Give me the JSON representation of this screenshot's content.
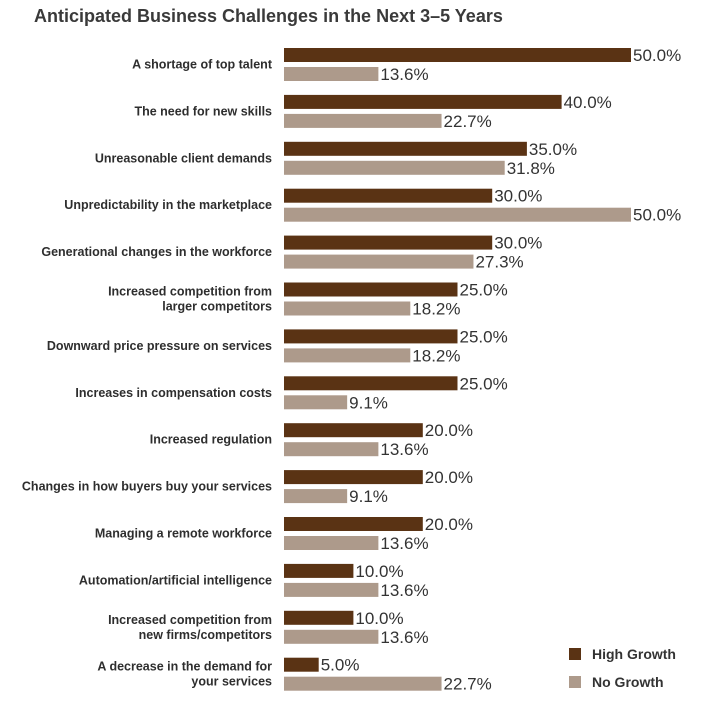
{
  "chart_data": {
    "type": "bar",
    "orientation": "horizontal",
    "title": "Anticipated Business Challenges in the Next 3–5 Years",
    "xlim": [
      0,
      50
    ],
    "grid": false,
    "legend_position": "bottom-right",
    "categories": [
      [
        "A shortage of top talent"
      ],
      [
        "The need for new skills"
      ],
      [
        "Unreasonable client demands"
      ],
      [
        "Unpredictability in the marketplace"
      ],
      [
        "Generational changes in the workforce"
      ],
      [
        "Increased competition from",
        "larger competitors"
      ],
      [
        "Downward price pressure on services"
      ],
      [
        "Increases in compensation costs"
      ],
      [
        "Increased regulation"
      ],
      [
        "Changes in how buyers buy your services"
      ],
      [
        "Managing a remote workforce"
      ],
      [
        "Automation/artificial intelligence"
      ],
      [
        "Increased competition from",
        "new firms/competitors"
      ],
      [
        "A decrease in the demand for",
        "your services"
      ]
    ],
    "series": [
      {
        "name": "High Growth",
        "color": "#5a3314",
        "values": [
          50.0,
          40.0,
          35.0,
          30.0,
          30.0,
          25.0,
          25.0,
          25.0,
          20.0,
          20.0,
          20.0,
          10.0,
          10.0,
          5.0
        ],
        "labels": [
          "50.0%",
          "40.0%",
          "35.0%",
          "30.0%",
          "30.0%",
          "25.0%",
          "25.0%",
          "25.0%",
          "20.0%",
          "20.0%",
          "20.0%",
          "10.0%",
          "10.0%",
          "5.0%"
        ]
      },
      {
        "name": "No Growth",
        "color": "#ad9a8b",
        "values": [
          13.6,
          22.7,
          31.8,
          50.0,
          27.3,
          18.2,
          18.2,
          9.1,
          13.6,
          9.1,
          13.6,
          13.6,
          13.6,
          22.7
        ],
        "labels": [
          "13.6%",
          "22.7%",
          "31.8%",
          "50.0%",
          "27.3%",
          "18.2%",
          "18.2%",
          "9.1%",
          "13.6%",
          "9.1%",
          "13.6%",
          "13.6%",
          "13.6%",
          "22.7%"
        ]
      }
    ]
  }
}
